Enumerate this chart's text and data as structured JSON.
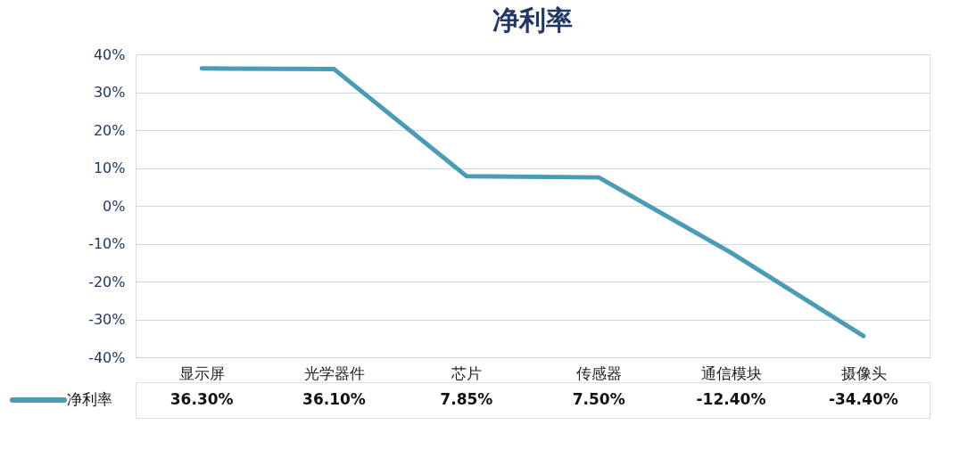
{
  "chart_data": {
    "type": "line",
    "title": "净利率",
    "categories": [
      "显示屏",
      "光学器件",
      "芯片",
      "传感器",
      "通信模块",
      "摄像头"
    ],
    "series": [
      {
        "name": "净利率",
        "color": "#4a9cb6",
        "values": [
          36.3,
          36.1,
          7.85,
          7.5,
          -12.4,
          -34.4
        ],
        "value_labels": [
          "36.30%",
          "36.10%",
          "7.85%",
          "7.50%",
          "-12.40%",
          "-34.40%"
        ]
      }
    ],
    "ylim": [
      -40,
      40
    ],
    "yticks": [
      {
        "value": -40,
        "label": "-40%"
      },
      {
        "value": -30,
        "label": "-30%"
      },
      {
        "value": -20,
        "label": "-20%"
      },
      {
        "value": -10,
        "label": "-10%"
      },
      {
        "value": 0,
        "label": "0%"
      },
      {
        "value": 10,
        "label": "10%"
      },
      {
        "value": 20,
        "label": "20%"
      },
      {
        "value": 30,
        "label": "30%"
      },
      {
        "value": 40,
        "label": "40%"
      }
    ],
    "grid": "y",
    "legend": "bottom",
    "marker": "none",
    "line_style": "solid"
  }
}
